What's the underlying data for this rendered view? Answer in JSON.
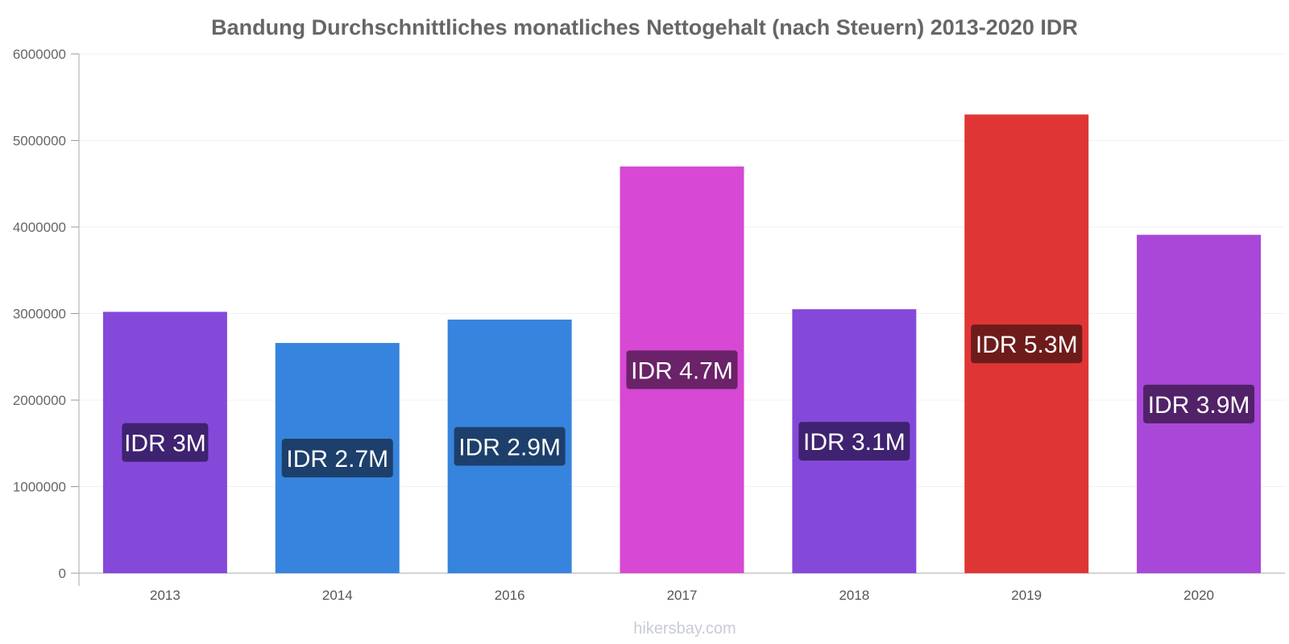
{
  "chart_data": {
    "type": "bar",
    "title": "Bandung Durchschnittliches monatliches Nettogehalt (nach Steuern) 2013-2020 IDR",
    "xlabel": "",
    "ylabel": "",
    "categories": [
      "2013",
      "2014",
      "2016",
      "2017",
      "2018",
      "2019",
      "2020"
    ],
    "values": [
      3020000,
      2660000,
      2930000,
      4700000,
      3050000,
      5300000,
      3910000
    ],
    "data_labels": [
      "IDR 3M",
      "IDR 2.7M",
      "IDR 2.9M",
      "IDR 4.7M",
      "IDR 3.1M",
      "IDR 5.3M",
      "IDR 3.9M"
    ],
    "bar_colors": [
      "#8549da",
      "#3684dd",
      "#3684dd",
      "#d748d4",
      "#8549da",
      "#e03535",
      "#a948d8"
    ],
    "label_bg_colors": [
      "#3f2270",
      "#1d3f6b",
      "#1d3f6b",
      "#6a2268",
      "#3f2270",
      "#6e1b1b",
      "#512268"
    ],
    "ylim": [
      0,
      6000000
    ],
    "yticks": [
      "0",
      "1000000",
      "2000000",
      "3000000",
      "4000000",
      "5000000",
      "6000000"
    ],
    "grid": true,
    "legend": "none"
  },
  "watermark": "hikersbay.com"
}
